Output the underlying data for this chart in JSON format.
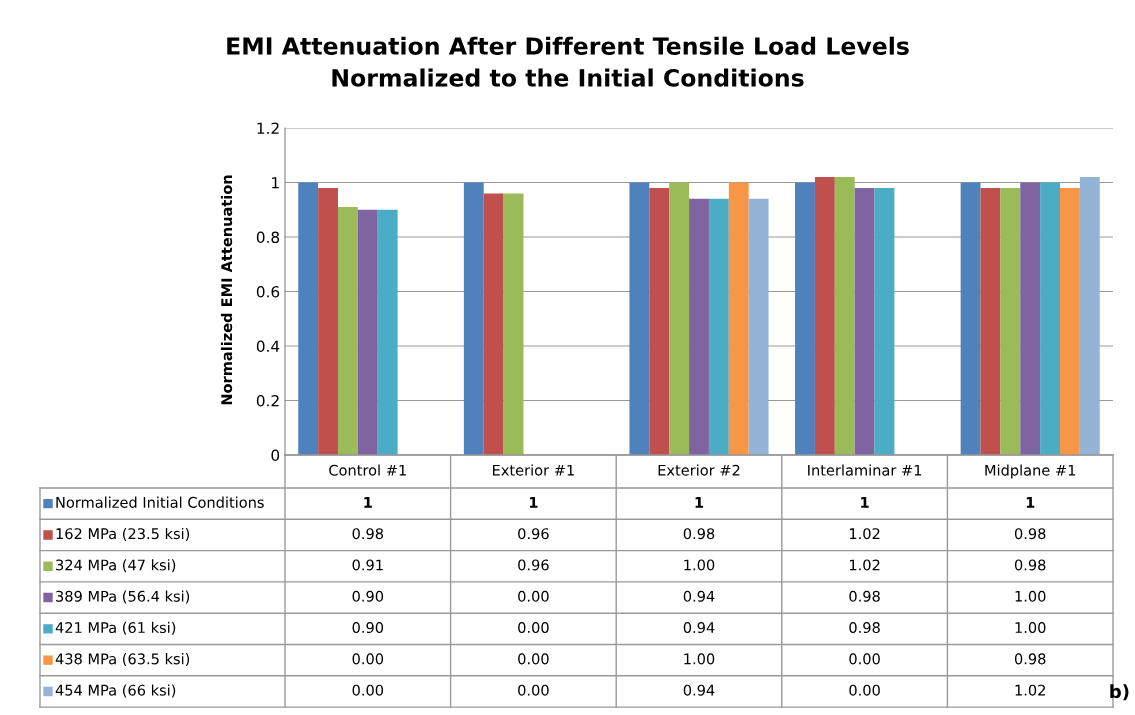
{
  "chart_data": {
    "type": "bar",
    "title": "EMI Attenuation After Different Tensile Load Levels\nNormalized to the Initial Conditions",
    "ylabel": "Normalized EMI Attenuation",
    "categories": [
      "Control #1",
      "Exterior #1",
      "Exterior #2",
      "Interlaminar #1",
      "Midplane #1"
    ],
    "series": [
      {
        "name": "Normalized Initial Conditions",
        "color": "#4f81bd",
        "values": [
          1,
          1,
          1,
          1,
          1
        ],
        "value_labels": [
          "1",
          "1",
          "1",
          "1",
          "1"
        ]
      },
      {
        "name": "162 MPa (23.5 ksi)",
        "color": "#c0504d",
        "values": [
          0.98,
          0.96,
          0.98,
          1.02,
          0.98
        ],
        "value_labels": [
          "0.98",
          "0.96",
          "0.98",
          "1.02",
          "0.98"
        ]
      },
      {
        "name": "324 MPa (47 ksi)",
        "color": "#9bbb59",
        "values": [
          0.91,
          0.96,
          1.0,
          1.02,
          0.98
        ],
        "value_labels": [
          "0.91",
          "0.96",
          "1.00",
          "1.02",
          "0.98"
        ]
      },
      {
        "name": "389 MPa (56.4 ksi)",
        "color": "#8064a2",
        "values": [
          0.9,
          0.0,
          0.94,
          0.98,
          1.0
        ],
        "value_labels": [
          "0.90",
          "0.00",
          "0.94",
          "0.98",
          "1.00"
        ]
      },
      {
        "name": "421 MPa (61 ksi)",
        "color": "#4bacc6",
        "values": [
          0.9,
          0.0,
          0.94,
          0.98,
          1.0
        ],
        "value_labels": [
          "0.90",
          "0.00",
          "0.94",
          "0.98",
          "1.00"
        ]
      },
      {
        "name": "438 MPa (63.5 ksi)",
        "color": "#f79646",
        "values": [
          0.0,
          0.0,
          1.0,
          0.0,
          0.98
        ],
        "value_labels": [
          "0.00",
          "0.00",
          "1.00",
          "0.00",
          "0.98"
        ]
      },
      {
        "name": "454 MPa (66 ksi)",
        "color": "#95b3d7",
        "values": [
          0.0,
          0.0,
          0.94,
          0.0,
          1.02
        ],
        "value_labels": [
          "0.00",
          "0.00",
          "0.94",
          "0.00",
          "1.02"
        ]
      }
    ],
    "ylim": [
      0,
      1.2
    ],
    "yticks": [
      0,
      0.2,
      0.4,
      0.6,
      0.8,
      1,
      1.2
    ],
    "grid": "y",
    "legend": "bottom left",
    "annotations": [
      "b)"
    ]
  }
}
